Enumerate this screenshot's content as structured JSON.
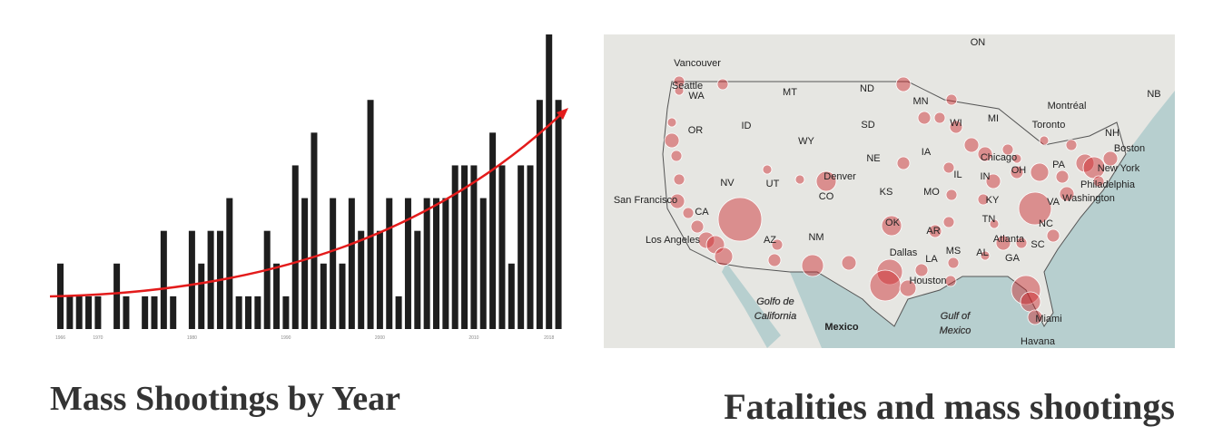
{
  "chart_data": {
    "type": "bar",
    "title": "Mass Shootings by Year",
    "color": "#1e1e1e",
    "categories": [
      "1966",
      null,
      null,
      null,
      "1970",
      null,
      null,
      null,
      null,
      null,
      null,
      null,
      null,
      null,
      "1980",
      null,
      null,
      null,
      null,
      null,
      null,
      null,
      null,
      null,
      "1990",
      null,
      null,
      null,
      null,
      null,
      null,
      null,
      null,
      null,
      "2000",
      null,
      null,
      null,
      null,
      null,
      null,
      null,
      null,
      null,
      "2010",
      null,
      null,
      null,
      null,
      null,
      null,
      null,
      "2018",
      null
    ],
    "values": [
      2,
      1,
      1,
      1,
      1,
      0,
      2,
      1,
      0,
      1,
      1,
      3,
      1,
      0,
      3,
      2,
      3,
      3,
      4,
      1,
      1,
      1,
      3,
      2,
      1,
      5,
      4,
      6,
      2,
      4,
      2,
      4,
      3,
      7,
      3,
      4,
      1,
      4,
      3,
      4,
      4,
      4,
      5,
      5,
      5,
      4,
      6,
      5,
      2,
      5,
      5,
      7,
      9,
      7
    ]
  },
  "map": {
    "title": "Fatalities and mass shootings",
    "labels": [
      "ON",
      "Vancouver",
      "Seattle",
      "WA",
      "MT",
      "ND",
      "MN",
      "Montréal",
      "NB",
      "Toronto",
      "OR",
      "ID",
      "SD",
      "WI",
      "MI",
      "NH",
      "WY",
      "IA",
      "Chicago",
      "NE",
      "Boston",
      "New York",
      "OH",
      "PA",
      "IN",
      "IL",
      "Philadelphia",
      "NV",
      "UT",
      "CO",
      "Denver",
      "KS",
      "MO",
      "Washington",
      "San Francisco",
      "VA",
      "KY",
      "CA",
      "OK",
      "TN",
      "NC",
      "AR",
      "Los Angeles",
      "AZ",
      "NM",
      "Dallas",
      "MS",
      "AL",
      "SC",
      "Atlanta",
      "GA",
      "LA",
      "Houston",
      "Golfo de",
      "California",
      "Gulf of",
      "Mexico",
      "Mexico",
      "Miami",
      "Havana"
    ]
  }
}
